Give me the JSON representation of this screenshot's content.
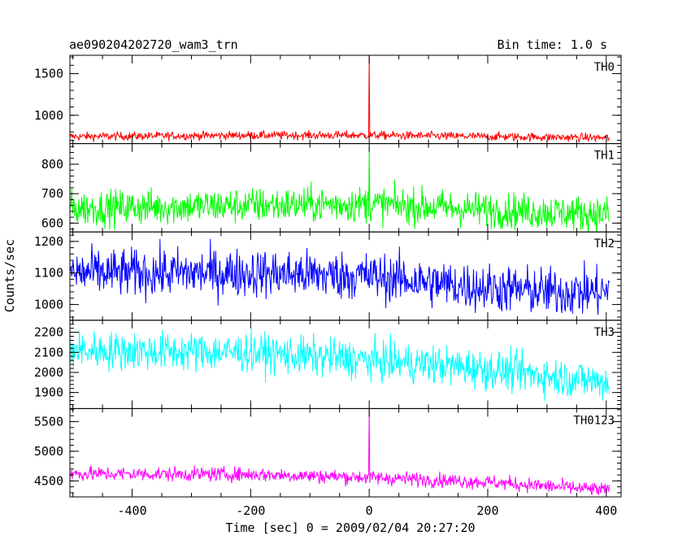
{
  "plot": {
    "title": "ae090204202720_wam3_trn",
    "bin_time": "Bin time: 1.0 s",
    "xlabel": "Time [sec] 0 = 2009/02/04 20:27:20",
    "ylabel": "Counts/sec"
  },
  "chart_data": {
    "type": "line",
    "title": "ae090204202720_wam3_trn",
    "xlabel": "Time [sec] 0 = 2009/02/04 20:27:20",
    "ylabel": "Counts/sec",
    "xlim": [
      -505,
      425
    ],
    "xticks": [
      -400,
      -200,
      0,
      200,
      400
    ],
    "grid": false,
    "legend": "none (panel labels at top-right of each panel)",
    "bin_time_s": 1.0,
    "series": [
      {
        "name": "TH0",
        "color": "#ff0000",
        "ylim": [
          660,
          1720
        ],
        "yticks": [
          1000,
          1500
        ],
        "x_range": [
          -505,
          405
        ],
        "profile_t": [
          -505,
          -200,
          0,
          200,
          405
        ],
        "profile_mean": [
          745,
          760,
          760,
          745,
          730
        ],
        "noise_sd": 25,
        "spike": {
          "x": 0,
          "peak": 1720
        }
      },
      {
        "name": "TH1",
        "color": "#00ff00",
        "ylim": [
          570,
          870
        ],
        "yticks": [
          600,
          700,
          800
        ],
        "x_range": [
          -505,
          405
        ],
        "profile_t": [
          -505,
          -200,
          0,
          200,
          405
        ],
        "profile_mean": [
          650,
          660,
          665,
          645,
          630
        ],
        "noise_sd": 30,
        "spike": {
          "x": 0,
          "peak": 860
        }
      },
      {
        "name": "TH2",
        "color": "#0000ff",
        "ylim": [
          950,
          1230
        ],
        "yticks": [
          1000,
          1100,
          1200
        ],
        "x_range": [
          -505,
          405
        ],
        "profile_t": [
          -505,
          -200,
          0,
          150,
          300,
          405
        ],
        "profile_mean": [
          1100,
          1100,
          1090,
          1060,
          1040,
          1040
        ],
        "noise_sd": 38,
        "spike": null
      },
      {
        "name": "TH3",
        "color": "#00ffff",
        "ylim": [
          1820,
          2260
        ],
        "yticks": [
          1900,
          2000,
          2100,
          2200
        ],
        "x_range": [
          -505,
          405
        ],
        "profile_t": [
          -505,
          -200,
          0,
          150,
          250,
          405
        ],
        "profile_mean": [
          2110,
          2100,
          2060,
          2030,
          2000,
          1950
        ],
        "noise_sd": 48,
        "spike": null
      },
      {
        "name": "TH0123",
        "color": "#ff00ff",
        "ylim": [
          4230,
          5720
        ],
        "yticks": [
          4500,
          5000,
          5500
        ],
        "x_range": [
          -505,
          405
        ],
        "profile_t": [
          -505,
          -200,
          0,
          200,
          405
        ],
        "profile_mean": [
          4620,
          4610,
          4560,
          4480,
          4340
        ],
        "noise_sd": 60,
        "spike": {
          "x": 0,
          "peak": 5720
        }
      }
    ]
  }
}
